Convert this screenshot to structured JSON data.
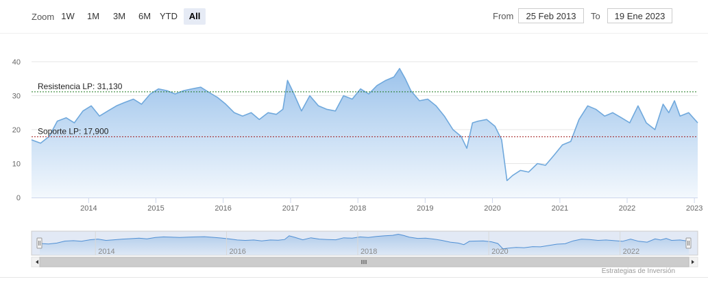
{
  "toolbar": {
    "zoom_label": "Zoom",
    "zoom_buttons": [
      "1W",
      "1M",
      "3M",
      "6M",
      "YTD",
      "All"
    ],
    "active_button": "All",
    "from_label": "From",
    "from_value": "25 Feb 2013",
    "to_label": "To",
    "to_value": "19 Ene 2023"
  },
  "credit": "Estrategias de Inversión",
  "colors": {
    "line": "#6fa8dc",
    "area_top": "#9cc3eb",
    "area_bottom": "#f3f8fd",
    "resistance": "#1f7a1f",
    "support": "#a01818",
    "grid": "#e6e6e6",
    "navigator_mask": "#c6d3ec"
  },
  "chart_data": {
    "type": "area",
    "ylim": [
      0,
      40
    ],
    "yticks": [
      "0",
      "10",
      "20",
      "30",
      "40"
    ],
    "xlim": [
      "2013-02-25",
      "2023-01-19"
    ],
    "xticks": [
      "2014",
      "2015",
      "2016",
      "2017",
      "2018",
      "2019",
      "2020",
      "2021",
      "2022",
      "2023"
    ],
    "navigator_ticks": [
      "2014",
      "2016",
      "2018",
      "2020",
      "2022"
    ],
    "grid": true,
    "plot_lines": [
      {
        "label": "Resistencia LP: 31,130",
        "value": 31.13,
        "style": "dotted"
      },
      {
        "label": "Soporte LP: 17,900",
        "value": 17.9,
        "style": "dotted"
      }
    ],
    "series": [
      {
        "x": [
          "2013-02-25",
          "2013-04-15",
          "2013-06-01",
          "2013-07-15",
          "2013-09-01",
          "2013-10-15",
          "2013-12-01",
          "2014-01-15",
          "2014-03-01",
          "2014-04-15",
          "2014-06-01",
          "2014-07-15",
          "2014-09-01",
          "2014-10-15",
          "2014-12-01",
          "2015-01-15",
          "2015-03-01",
          "2015-04-15",
          "2015-06-01",
          "2015-07-15",
          "2015-09-01",
          "2015-10-15",
          "2015-12-01",
          "2016-01-15",
          "2016-03-01",
          "2016-04-15",
          "2016-06-01",
          "2016-07-15",
          "2016-09-01",
          "2016-10-15",
          "2016-11-20",
          "2016-12-15",
          "2017-01-15",
          "2017-03-01",
          "2017-04-15",
          "2017-06-01",
          "2017-07-15",
          "2017-09-01",
          "2017-10-15",
          "2017-12-01",
          "2018-01-15",
          "2018-03-01",
          "2018-04-15",
          "2018-06-01",
          "2018-07-15",
          "2018-08-15",
          "2018-09-15",
          "2018-10-15",
          "2018-12-01",
          "2019-01-15",
          "2019-03-01",
          "2019-04-15",
          "2019-06-01",
          "2019-07-15",
          "2019-08-15",
          "2019-09-15",
          "2019-10-15",
          "2019-12-01",
          "2020-01-15",
          "2020-02-20",
          "2020-03-20",
          "2020-04-20",
          "2020-06-01",
          "2020-07-15",
          "2020-09-01",
          "2020-10-15",
          "2020-12-01",
          "2021-01-15",
          "2021-03-01",
          "2021-04-15",
          "2021-06-01",
          "2021-07-15",
          "2021-09-01",
          "2021-10-15",
          "2021-12-01",
          "2022-01-15",
          "2022-03-01",
          "2022-04-15",
          "2022-06-01",
          "2022-07-15",
          "2022-08-15",
          "2022-09-15",
          "2022-10-15",
          "2022-12-01",
          "2023-01-19"
        ],
        "y": [
          17.0,
          16.0,
          18.0,
          22.5,
          23.5,
          22.0,
          25.5,
          27.0,
          24.0,
          25.5,
          27.0,
          28.0,
          29.0,
          27.5,
          30.5,
          32.0,
          31.5,
          30.5,
          31.5,
          32.0,
          32.5,
          31.0,
          29.5,
          27.5,
          25.0,
          24.0,
          25.0,
          23.0,
          25.0,
          24.5,
          26.0,
          34.5,
          31.0,
          25.5,
          30.0,
          27.0,
          26.0,
          25.5,
          30.0,
          29.0,
          32.0,
          30.5,
          33.0,
          34.5,
          35.5,
          38.0,
          35.0,
          31.5,
          28.5,
          29.0,
          27.0,
          24.0,
          20.0,
          18.0,
          14.5,
          22.0,
          22.5,
          23.0,
          21.0,
          17.0,
          5.0,
          6.5,
          8.0,
          7.5,
          10.0,
          9.5,
          12.5,
          15.5,
          16.5,
          23.0,
          27.0,
          26.0,
          24.0,
          25.0,
          23.5,
          22.0,
          27.0,
          22.0,
          20.0,
          27.5,
          25.0,
          28.5,
          24.0,
          25.0,
          22.0
        ]
      }
    ]
  }
}
